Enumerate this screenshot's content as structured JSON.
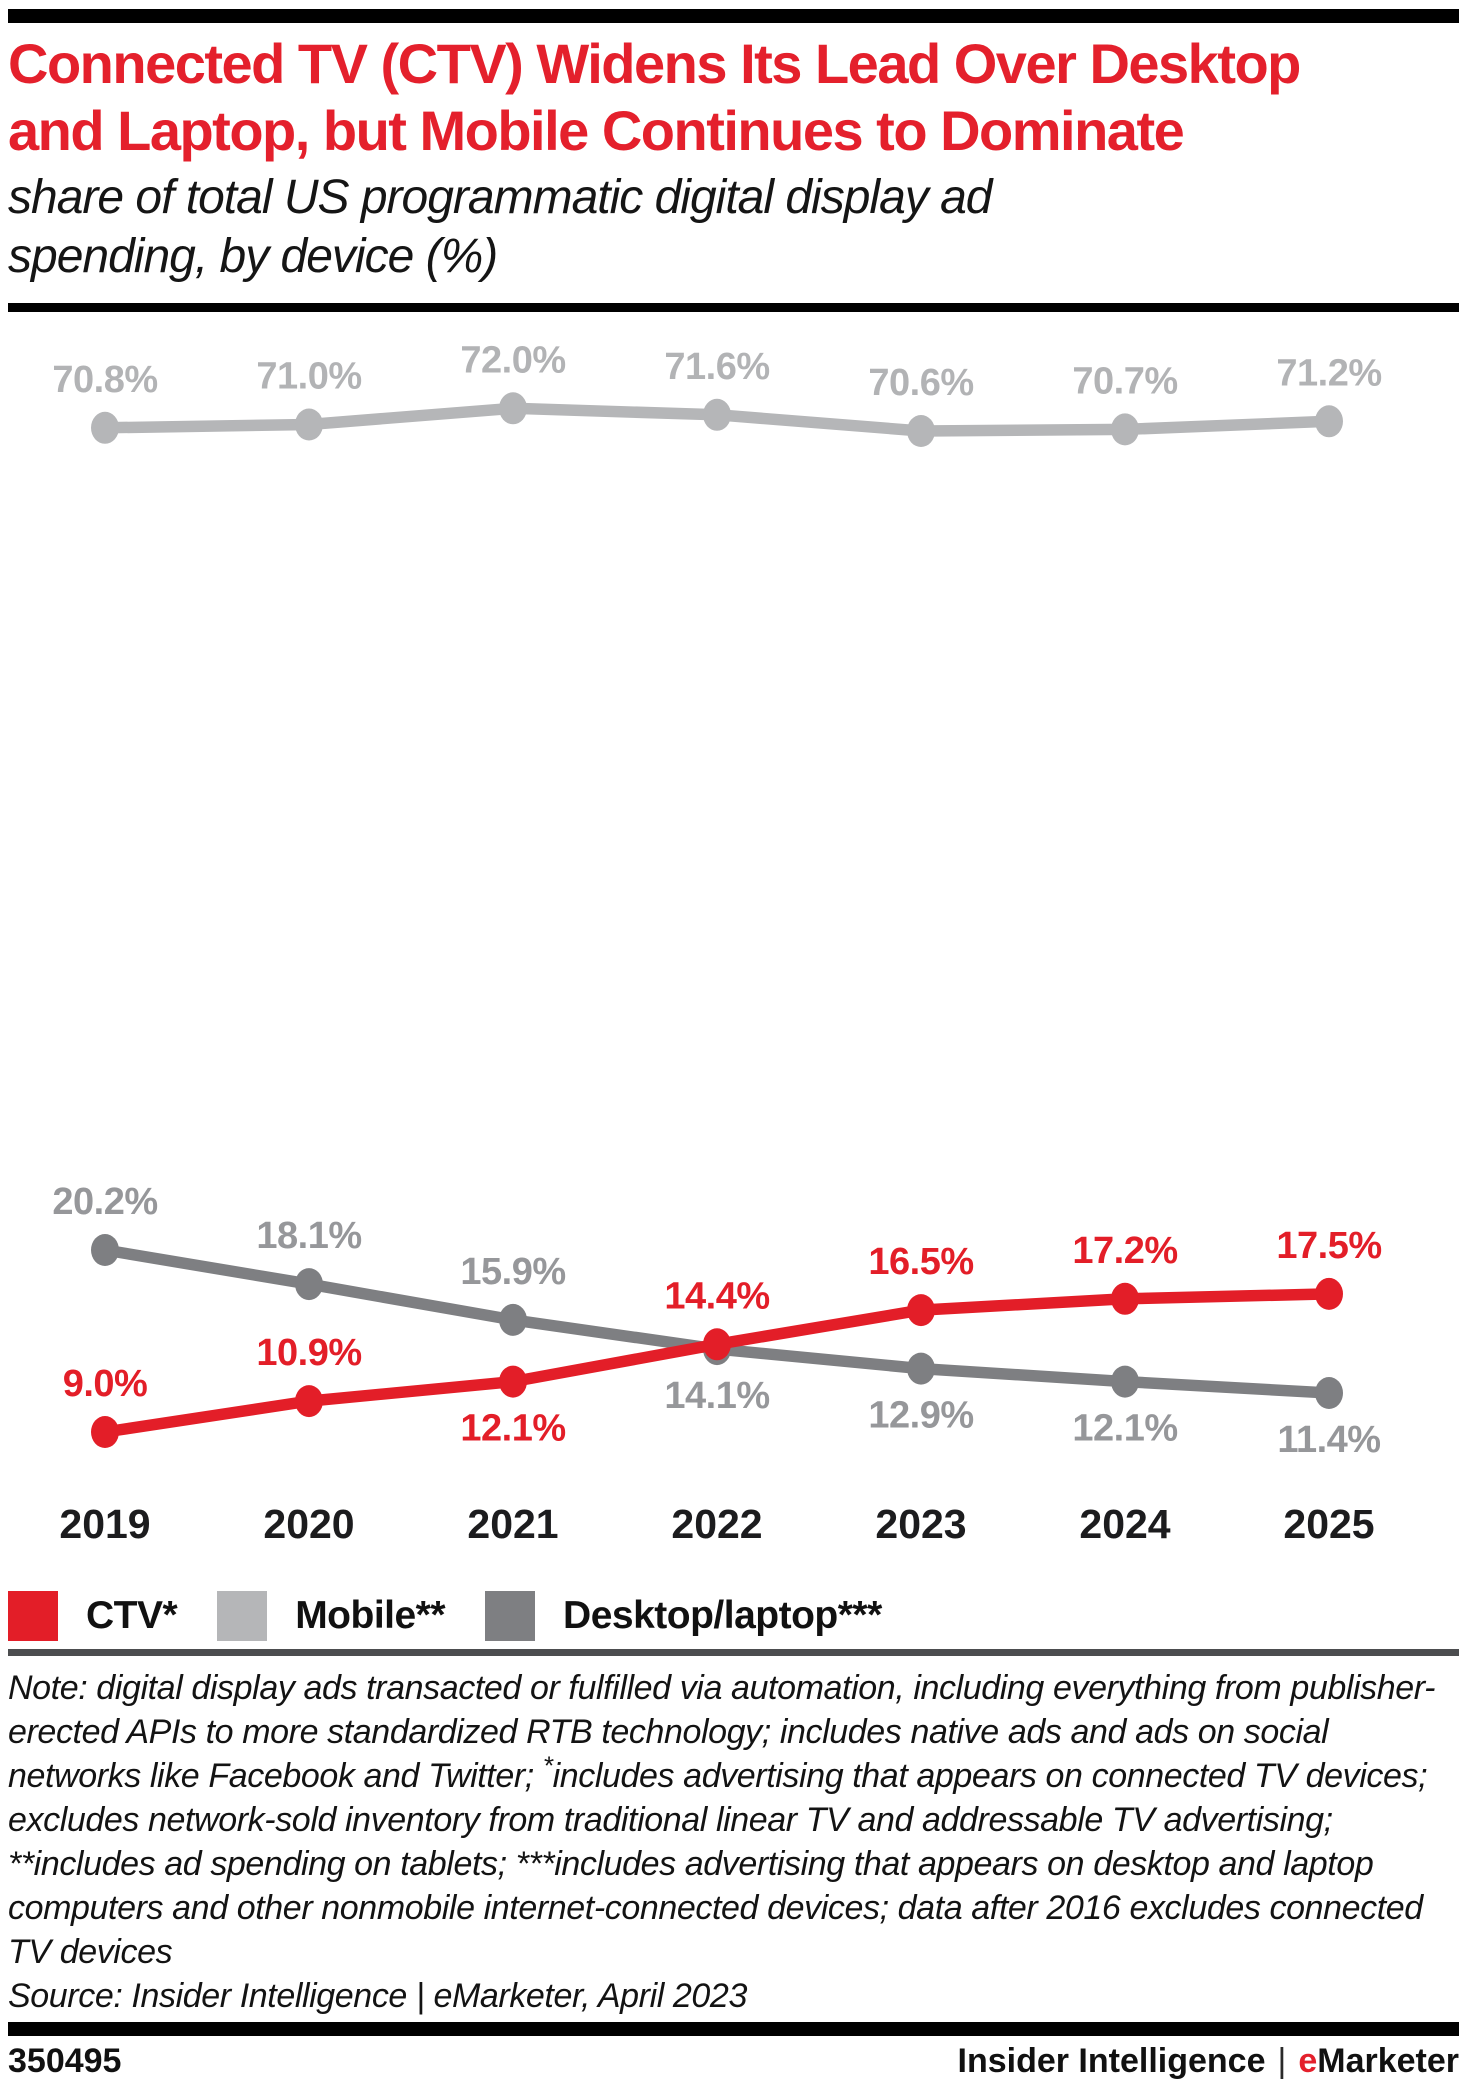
{
  "header": {
    "title_lines": [
      "Connected TV (CTV) Widens Its Lead Over Desktop",
      "and Laptop, but Mobile Continues to Dominate"
    ],
    "subtitle_lines": [
      "share of total US programmatic digital display ad",
      "spending, by device (%)"
    ]
  },
  "chart_data": {
    "type": "line",
    "title": "Connected TV (CTV) Widens Its Lead Over Desktop and Laptop, but Mobile Continues to Dominate",
    "subtitle": "share of total US programmatic digital display ad spending, by device (%)",
    "x": [
      "2019",
      "2020",
      "2021",
      "2022",
      "2023",
      "2024",
      "2025"
    ],
    "unit": "%",
    "ylim": [
      0,
      80
    ],
    "grid": false,
    "legend_position": "bottom",
    "series": [
      {
        "name": "CTV*",
        "color": "#e31e28",
        "label_color": "#e31e28",
        "values": [
          9.0,
          10.9,
          12.1,
          14.4,
          16.5,
          17.2,
          17.5
        ],
        "label_side": [
          "above",
          "above",
          "below",
          "above",
          "above",
          "above",
          "above"
        ]
      },
      {
        "name": "Mobile**",
        "color": "#b5b6b8",
        "label_color": "#b2b3b5",
        "values": [
          70.8,
          71.0,
          72.0,
          71.6,
          70.6,
          70.7,
          71.2
        ],
        "label_side": [
          "above",
          "above",
          "above",
          "above",
          "above",
          "above",
          "above"
        ]
      },
      {
        "name": "Desktop/laptop***",
        "color": "#7e7f82",
        "label_color": "#96979a",
        "values": [
          20.2,
          18.1,
          15.9,
          14.1,
          12.9,
          12.1,
          11.4
        ],
        "label_side": [
          "above",
          "above",
          "above",
          "below",
          "below",
          "below",
          "below"
        ]
      }
    ]
  },
  "note": {
    "parts": [
      {
        "text": "Note: digital display ads transacted or fulfilled via automation, including everything from publisher-erected APIs to more standardized RTB technology; includes native ads and ads on social networks like Facebook and Twitter; "
      },
      {
        "text": "*",
        "sup": true
      },
      {
        "text": "includes advertising that appears on connected TV devices; excludes network-sold inventory from traditional linear TV and addressable TV advertising; **includes ad spending on tablets; ***includes advertising that appears on desktop and laptop computers and other nonmobile internet-connected devices; data after 2016 excludes connected TV devices"
      }
    ],
    "source": "Source: Insider Intelligence | eMarketer, April 2023"
  },
  "footer": {
    "chart_id": "350495",
    "brand_name": "Insider Intelligence",
    "brand_sep": "|",
    "brand_e": "e",
    "brand_rest": "Marketer"
  },
  "colors": {
    "brand_red": "#e31e28",
    "title_red": "#e4202c",
    "mobile_gray": "#b5b6b8",
    "desktop_gray": "#7e7f82",
    "legend_rule_gray": "#4c4d4f",
    "bar_black": "#000000"
  }
}
